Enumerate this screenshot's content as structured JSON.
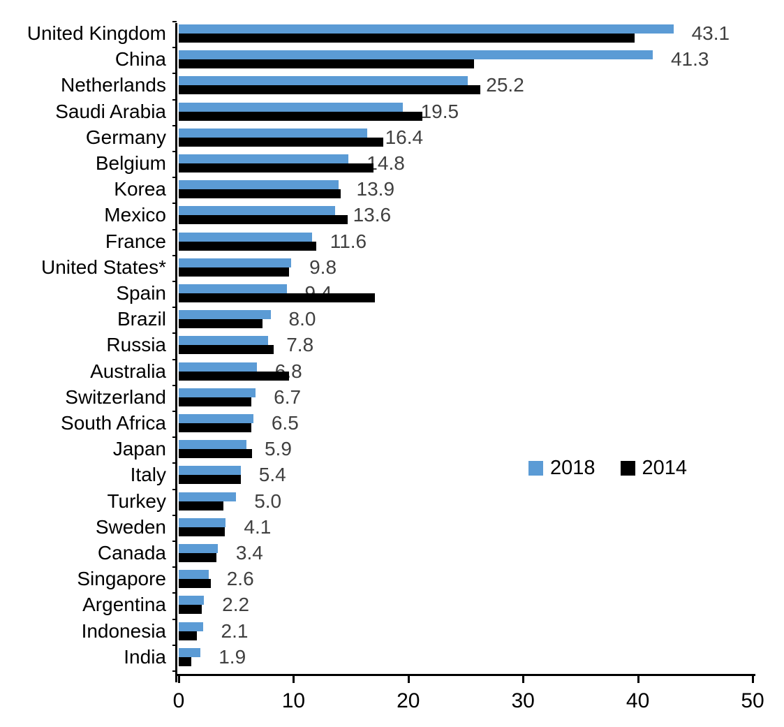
{
  "chart_data": {
    "type": "bar",
    "orientation": "horizontal",
    "title": "",
    "xlabel": "",
    "ylabel": "",
    "xlim": [
      0,
      50
    ],
    "x_ticks": [
      0,
      10,
      20,
      30,
      40,
      50
    ],
    "grid": false,
    "legend_position": "middle-right",
    "categories": [
      "United Kingdom",
      "China",
      "Netherlands",
      "Saudi Arabia",
      "Germany",
      "Belgium",
      "Korea",
      "Mexico",
      "France",
      "United States*",
      "Spain",
      "Brazil",
      "Russia",
      "Australia",
      "Switzerland",
      "South Africa",
      "Japan",
      "Italy",
      "Turkey",
      "Sweden",
      "Canada",
      "Singapore",
      "Argentina",
      "Indonesia",
      "India"
    ],
    "series": [
      {
        "name": "2018",
        "color": "#5B9BD5",
        "data_labels_shown": true,
        "values": [
          43.1,
          41.3,
          25.2,
          19.5,
          16.4,
          14.8,
          13.9,
          13.6,
          11.6,
          9.8,
          9.4,
          8.0,
          7.8,
          6.8,
          6.7,
          6.5,
          5.9,
          5.4,
          5.0,
          4.1,
          3.4,
          2.6,
          2.2,
          2.1,
          1.9
        ]
      },
      {
        "name": "2014",
        "color": "#000000",
        "data_labels_shown": false,
        "values": [
          39.7,
          25.7,
          26.3,
          21.2,
          17.8,
          17.0,
          14.1,
          14.7,
          12.0,
          9.6,
          17.1,
          7.3,
          8.3,
          9.6,
          6.3,
          6.3,
          6.4,
          5.4,
          3.9,
          4.0,
          3.3,
          2.8,
          2.0,
          1.6,
          1.1
        ]
      }
    ],
    "data_label_color": "#404040",
    "axis_color": "#000000"
  }
}
